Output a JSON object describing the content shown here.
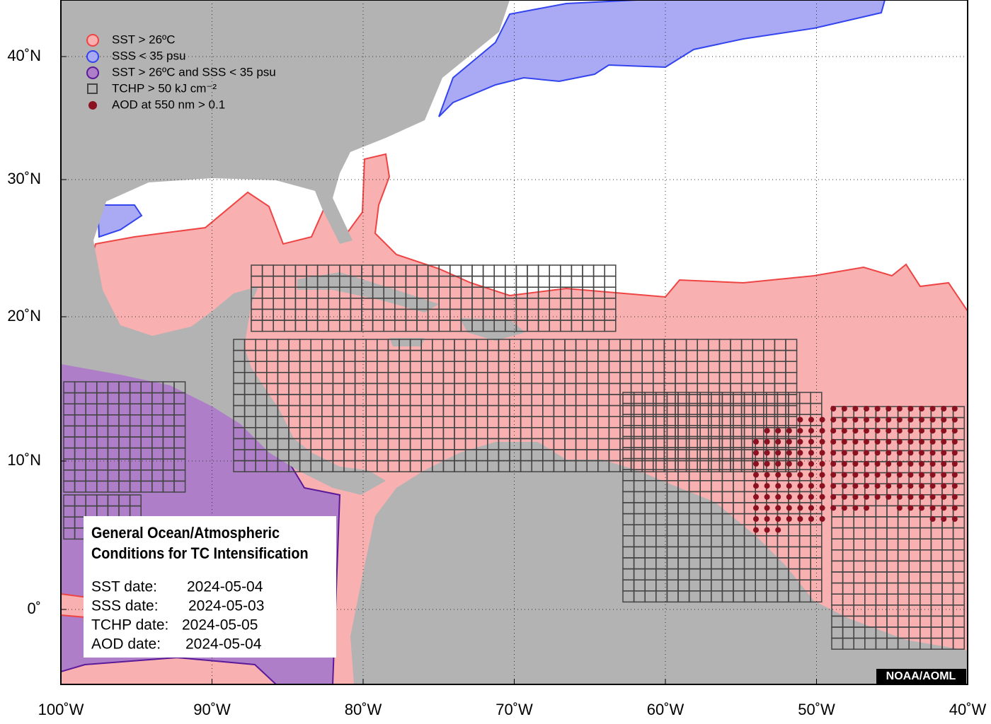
{
  "legend": [
    "SST > 26ºC",
    "SSS < 35 psu",
    "SST > 26ºC and SSS < 35 psu",
    "TCHP > 50 kJ cm⁻²",
    "AOD at 550 nm > 0.1"
  ],
  "info": {
    "title": [
      "General Ocean/Atmospheric",
      "Conditions for TC Intensification"
    ],
    "dates": [
      {
        "label": "SST date:",
        "date": "2024-05-04"
      },
      {
        "label": "SSS date:",
        "date": "2024-05-03"
      },
      {
        "label": "TCHP date:",
        "date": "2024-05-05"
      },
      {
        "label": "AOD date:",
        "date": "2024-05-04"
      }
    ]
  },
  "axes": {
    "x_labels": [
      "100˚W",
      "90˚W",
      "80˚W",
      "70˚W",
      "60˚W",
      "50˚W",
      "40˚W"
    ],
    "y_labels": [
      "40˚N",
      "30˚N",
      "20˚N",
      "10˚N",
      "0˚"
    ]
  },
  "credit": "NOAA/AOML"
}
